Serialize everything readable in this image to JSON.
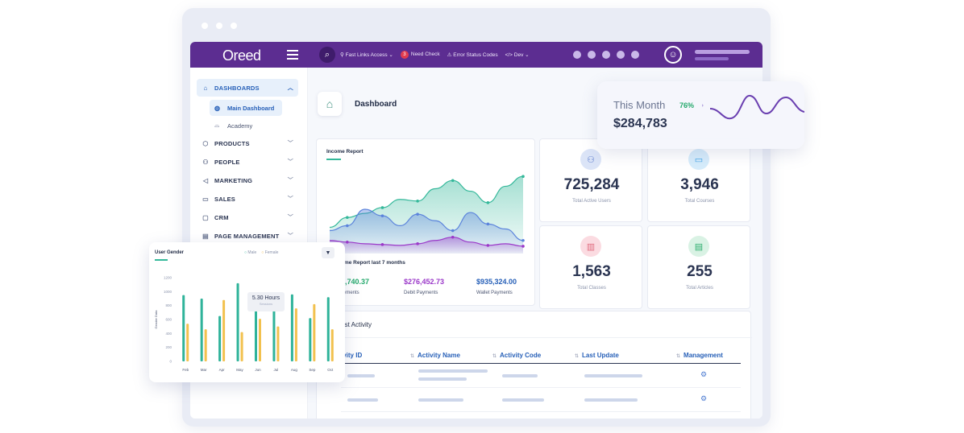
{
  "app": {
    "logo": "Oreed"
  },
  "topbar": {
    "links": [
      {
        "label": "Fast Links Access",
        "suffix": "⌄"
      },
      {
        "label": "Need Check",
        "badge": "3"
      },
      {
        "label": "Error Status Codes"
      },
      {
        "label": "Dev",
        "suffix": "⌄"
      }
    ]
  },
  "sidebar": {
    "items": [
      {
        "label": "DASHBOARDS",
        "icon": "house-icon"
      },
      {
        "label": "PRODUCTS",
        "icon": "box-icon"
      },
      {
        "label": "PEOPLE",
        "icon": "people-icon"
      },
      {
        "label": "MARKETING",
        "icon": "megaphone-icon"
      },
      {
        "label": "SALES",
        "icon": "sales-icon"
      },
      {
        "label": "CRM",
        "icon": "crm-icon"
      },
      {
        "label": "PAGE MANAGEMENT",
        "icon": "page-icon"
      }
    ],
    "sub_items": [
      {
        "label": "Main Dashboard",
        "icon": "dashboard-icon"
      },
      {
        "label": "Academy",
        "icon": "graduation-cap-icon"
      }
    ]
  },
  "main": {
    "title": "Dashboard",
    "income": {
      "title": "Income Report",
      "subtitle": "ome Report last 7 months",
      "payments": [
        {
          "value": "8,740.37",
          "label": "ayments",
          "color": "#23a86b"
        },
        {
          "value": "$276,452.73",
          "label": "Debit Payments",
          "color": "#9b39c9"
        },
        {
          "value": "$935,324.00",
          "label": "Wallet Payments",
          "color": "#2760b8"
        }
      ]
    },
    "stats": [
      {
        "value": "725,284",
        "label": "Total Active Users",
        "color": "#dbe4f7",
        "icon_color": "#5f7fcf"
      },
      {
        "value": "3,946",
        "label": "Total Courses",
        "color": "#d6ecfb",
        "icon_color": "#3aa0e6"
      },
      {
        "value": "1,563",
        "label": "Total Classes",
        "color": "#fbdbe1",
        "icon_color": "#e06b7f"
      },
      {
        "value": "255",
        "label": "Total Articles",
        "color": "#d9f2e4",
        "icon_color": "#2fae6f"
      }
    ],
    "activity": {
      "title": "test Activity",
      "columns": [
        "ivity ID",
        "Activity Name",
        "Activity Code",
        "Last Update",
        "Management"
      ]
    }
  },
  "this_month": {
    "label": "This Month",
    "percent": "76%",
    "value": "$284,783"
  },
  "user_gender": {
    "title": "User Gender",
    "legend": [
      "Male",
      "Female"
    ],
    "tooltip": {
      "value": "5.30 Hours",
      "sub": "Sessions"
    }
  },
  "chart_data": [
    {
      "type": "area",
      "title": "Income Report",
      "x": [
        0,
        1,
        2,
        3,
        4,
        5,
        6,
        7,
        8,
        9,
        10,
        11
      ],
      "series": [
        {
          "name": "",
          "color": "#34b89a",
          "values": [
            28,
            40,
            45,
            52,
            62,
            60,
            75,
            85,
            72,
            58,
            78,
            90
          ]
        },
        {
          "name": "",
          "color": "#5b83dc",
          "values": [
            24,
            30,
            50,
            42,
            30,
            44,
            36,
            24,
            46,
            32,
            26,
            12
          ]
        },
        {
          "name": "",
          "color": "#9b39c9",
          "values": [
            12,
            10,
            8,
            7,
            6,
            8,
            12,
            16,
            10,
            6,
            8,
            5
          ]
        }
      ],
      "ylim": [
        0,
        100
      ]
    },
    {
      "type": "bar",
      "title": "User Gender",
      "categories": [
        "Feb",
        "Mar",
        "Apr",
        "May",
        "Jun",
        "Jul",
        "Aug",
        "Sep",
        "Oct"
      ],
      "series": [
        {
          "name": "Male",
          "color": "#2fb39a",
          "values": [
            950,
            900,
            650,
            1120,
            750,
            980,
            960,
            620,
            920
          ]
        },
        {
          "name": "Female",
          "color": "#f2c14e",
          "values": [
            540,
            460,
            880,
            420,
            610,
            500,
            760,
            820,
            460
          ]
        }
      ],
      "ylim": [
        0,
        1200
      ],
      "ylabel": "Gender Data",
      "yticks": [
        0,
        200,
        400,
        600,
        800,
        1000,
        1200
      ]
    }
  ]
}
